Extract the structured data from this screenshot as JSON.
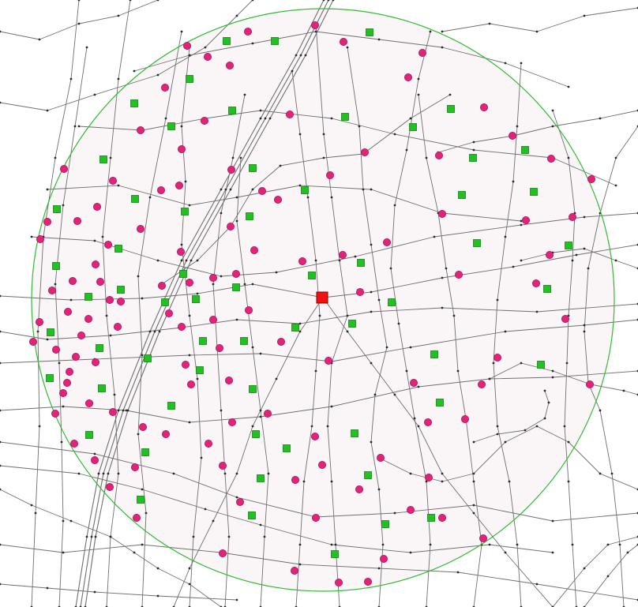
{
  "map": {
    "colors": {
      "background": "#ffffff",
      "road": "#6f6f6f",
      "road_node": "#2b2b2b",
      "buffer_ring": "#33bb33",
      "buffer_fill": "#f6eef3",
      "intersection_marker": "#e0247a",
      "intersection_marker_stroke": "#b0105a",
      "poi_marker": "#22c022",
      "poi_marker_stroke": "#118811",
      "center_marker": "#ee1111",
      "center_marker_stroke": "#880000"
    },
    "layers": [
      "street-network",
      "service-area-buffer",
      "intersection-markers",
      "poi-markers",
      "center-point"
    ],
    "icons": {
      "intersection": "pink-circle-icon",
      "poi": "green-square-icon",
      "center": "red-square-icon"
    }
  }
}
